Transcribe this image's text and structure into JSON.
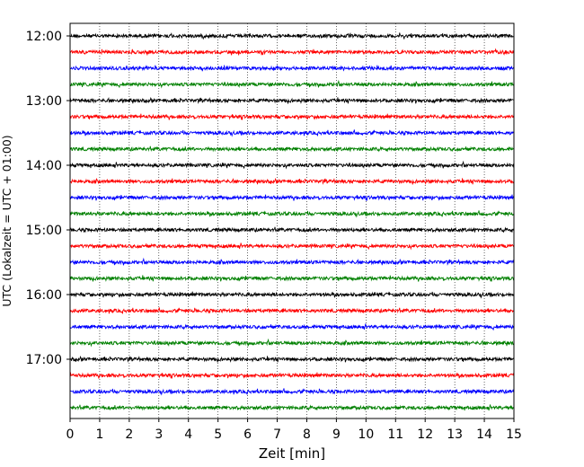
{
  "chart_data": {
    "type": "line",
    "title": "",
    "xlabel": "Zeit  [min]",
    "ylabel": "UTC (Lokalzeit = UTC + 01:00)",
    "xlim": [
      0,
      15
    ],
    "x_ticks": [
      "0",
      "1",
      "2",
      "3",
      "4",
      "5",
      "6",
      "7",
      "8",
      "9",
      "10",
      "11",
      "12",
      "13",
      "14",
      "15"
    ],
    "y_tick_labels": [
      "12:00",
      "13:00",
      "14:00",
      "15:00",
      "16:00",
      "17:00"
    ],
    "grid": "vertical dotted at each minute",
    "trace_interval_minutes": 15,
    "trace_colors": [
      "#000000",
      "#ff0000",
      "#0000ff",
      "#008000"
    ],
    "traces": [
      {
        "start": "12:00",
        "color": "#000000"
      },
      {
        "start": "12:15",
        "color": "#ff0000"
      },
      {
        "start": "12:30",
        "color": "#0000ff"
      },
      {
        "start": "12:45",
        "color": "#008000"
      },
      {
        "start": "13:00",
        "color": "#000000"
      },
      {
        "start": "13:15",
        "color": "#ff0000"
      },
      {
        "start": "13:30",
        "color": "#0000ff"
      },
      {
        "start": "13:45",
        "color": "#008000"
      },
      {
        "start": "14:00",
        "color": "#000000"
      },
      {
        "start": "14:15",
        "color": "#ff0000"
      },
      {
        "start": "14:30",
        "color": "#0000ff"
      },
      {
        "start": "14:45",
        "color": "#008000"
      },
      {
        "start": "15:00",
        "color": "#000000"
      },
      {
        "start": "15:15",
        "color": "#ff0000"
      },
      {
        "start": "15:30",
        "color": "#0000ff"
      },
      {
        "start": "15:45",
        "color": "#008000"
      },
      {
        "start": "16:00",
        "color": "#000000"
      },
      {
        "start": "16:15",
        "color": "#ff0000"
      },
      {
        "start": "16:30",
        "color": "#0000ff"
      },
      {
        "start": "16:45",
        "color": "#008000"
      },
      {
        "start": "17:00",
        "color": "#000000"
      },
      {
        "start": "17:15",
        "color": "#ff0000"
      },
      {
        "start": "17:30",
        "color": "#0000ff"
      },
      {
        "start": "17:45",
        "color": "#008000"
      }
    ]
  }
}
